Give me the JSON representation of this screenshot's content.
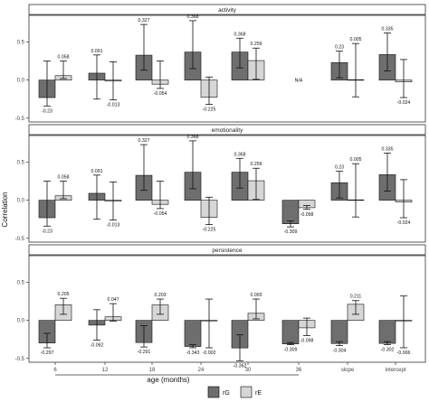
{
  "chart_data": {
    "type": "bar",
    "ylabel": "Correlation",
    "xlabel": "age (months)",
    "categories": [
      "6",
      "12",
      "18",
      "24",
      "30",
      "36",
      "slope",
      "intercept"
    ],
    "y_ticks": [
      "0.5",
      "0.0",
      "-0.5"
    ],
    "ylim": [
      -0.55,
      0.85
    ],
    "colors": {
      "rG": "#6e6e6e",
      "rE": "#d6d6d6"
    },
    "legend": {
      "placement": "bottom-right",
      "entries": [
        "rG",
        "rE"
      ]
    },
    "panels": [
      {
        "title": "activity",
        "na_label": "N/A",
        "series": [
          {
            "name": "rG",
            "values": [
              -0.23,
              0.091,
              0.327,
              0.368,
              0.368,
              null,
              0.23,
              0.335
            ],
            "labels": [
              "-0.23",
              "0.091",
              "0.327",
              "0.368",
              "0.368",
              "",
              "0.23",
              "0.335"
            ],
            "err_lo": [
              -0.34,
              -0.25,
              0.13,
              0.15,
              0.16,
              null,
              0.03,
              0.12
            ],
            "err_hi": [
              0.25,
              0.33,
              0.73,
              0.78,
              0.55,
              null,
              0.38,
              0.62
            ]
          },
          {
            "name": "rE",
            "values": [
              0.058,
              -0.013,
              -0.054,
              -0.225,
              0.256,
              null,
              0.005,
              -0.024
            ],
            "labels": [
              "0.058",
              "-0.013",
              "-0.054",
              "-0.225",
              "0.256",
              "",
              "0.005",
              "-0.024"
            ],
            "err_lo": [
              0.02,
              -0.26,
              -0.11,
              -0.32,
              0.01,
              null,
              -0.22,
              -0.23
            ],
            "err_hi": [
              0.25,
              0.24,
              0.25,
              0.04,
              0.42,
              null,
              0.48,
              0.27
            ]
          }
        ]
      },
      {
        "title": "emotionality",
        "series": [
          {
            "name": "rG",
            "values": [
              -0.23,
              0.091,
              0.327,
              0.368,
              0.368,
              -0.309,
              0.23,
              0.335
            ],
            "labels": [
              "-0.23",
              "0.091",
              "0.327",
              "0.368",
              "0.368",
              "-0.309",
              "0.23",
              "0.335"
            ],
            "err_lo": [
              -0.34,
              -0.25,
              0.13,
              0.15,
              0.16,
              -0.35,
              0.03,
              0.12
            ],
            "err_hi": [
              0.25,
              0.33,
              0.73,
              0.78,
              0.55,
              -0.27,
              0.38,
              0.62
            ]
          },
          {
            "name": "rE",
            "values": [
              0.058,
              -0.013,
              -0.054,
              -0.225,
              0.256,
              -0.098,
              0.005,
              -0.024
            ],
            "labels": [
              "0.058",
              "-0.013",
              "-0.054",
              "-0.225",
              "0.256",
              "-0.098",
              "0.005",
              "-0.024"
            ],
            "err_lo": [
              0.02,
              -0.26,
              -0.11,
              -0.32,
              0.01,
              -0.12,
              -0.22,
              -0.23
            ],
            "err_hi": [
              0.25,
              0.24,
              0.25,
              0.04,
              0.42,
              -0.07,
              0.48,
              0.27
            ]
          }
        ]
      },
      {
        "title": "persistence",
        "series": [
          {
            "name": "rG",
            "values": [
              -0.297,
              -0.062,
              -0.291,
              -0.343,
              -0.362,
              -0.309,
              -0.304,
              -0.302
            ],
            "labels": [
              "-0.297",
              "-0.062",
              "-0.291",
              "-0.343",
              "-0.362",
              "-0.309",
              "-0.304",
              "-0.302"
            ],
            "err_lo": [
              -0.36,
              -0.26,
              -0.35,
              -0.36,
              -0.53,
              -0.32,
              -0.33,
              -0.32
            ],
            "err_hi": [
              -0.17,
              0.14,
              -0.07,
              -0.32,
              -0.19,
              -0.29,
              -0.28,
              -0.28
            ]
          },
          {
            "name": "rE",
            "values": [
              0.205,
              0.047,
              0.203,
              -0.002,
              0.093,
              -0.098,
              0.211,
              -0.006
            ],
            "labels": [
              "0.205",
              "0.047",
              "0.203",
              "-0.002",
              "0.093",
              "-0.098",
              "0.211",
              "-0.006"
            ],
            "err_lo": [
              0.08,
              -0.01,
              0.08,
              -0.36,
              0.02,
              -0.2,
              0.08,
              -0.36
            ],
            "err_hi": [
              0.29,
              0.22,
              0.28,
              0.28,
              0.28,
              0.03,
              0.26,
              0.32
            ]
          }
        ]
      }
    ]
  }
}
